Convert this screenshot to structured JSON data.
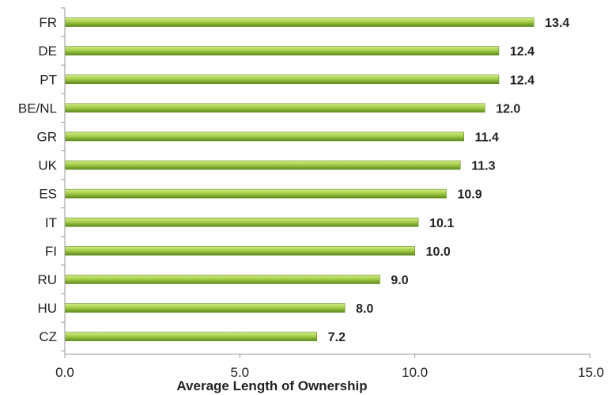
{
  "chart_data": {
    "type": "bar",
    "orientation": "horizontal",
    "categories": [
      "FR",
      "DE",
      "PT",
      "BE/NL",
      "GR",
      "UK",
      "ES",
      "IT",
      "FI",
      "RU",
      "HU",
      "CZ"
    ],
    "values": [
      13.4,
      12.4,
      12.4,
      12.0,
      11.4,
      11.3,
      10.9,
      10.1,
      10.0,
      9.0,
      8.0,
      7.2
    ],
    "value_labels": [
      "13.4",
      "12.4",
      "12.4",
      "12.0",
      "11.4",
      "11.3",
      "10.9",
      "10.1",
      "10.0",
      "9.0",
      "8.0",
      "7.2"
    ],
    "xlabel": "Average Length of Ownership",
    "ylabel": "",
    "xlim": [
      0,
      15
    ],
    "xticks": [
      0,
      5,
      10,
      15
    ],
    "xtick_labels": [
      "0.0",
      "5.0",
      "10.0",
      "15.0"
    ],
    "grid": false,
    "colors": {
      "bar_light": "#d4ec8a",
      "bar_mid": "#a6cf4a",
      "bar_dark": "#5e8a1c",
      "axis": "#9a9a9a"
    }
  }
}
